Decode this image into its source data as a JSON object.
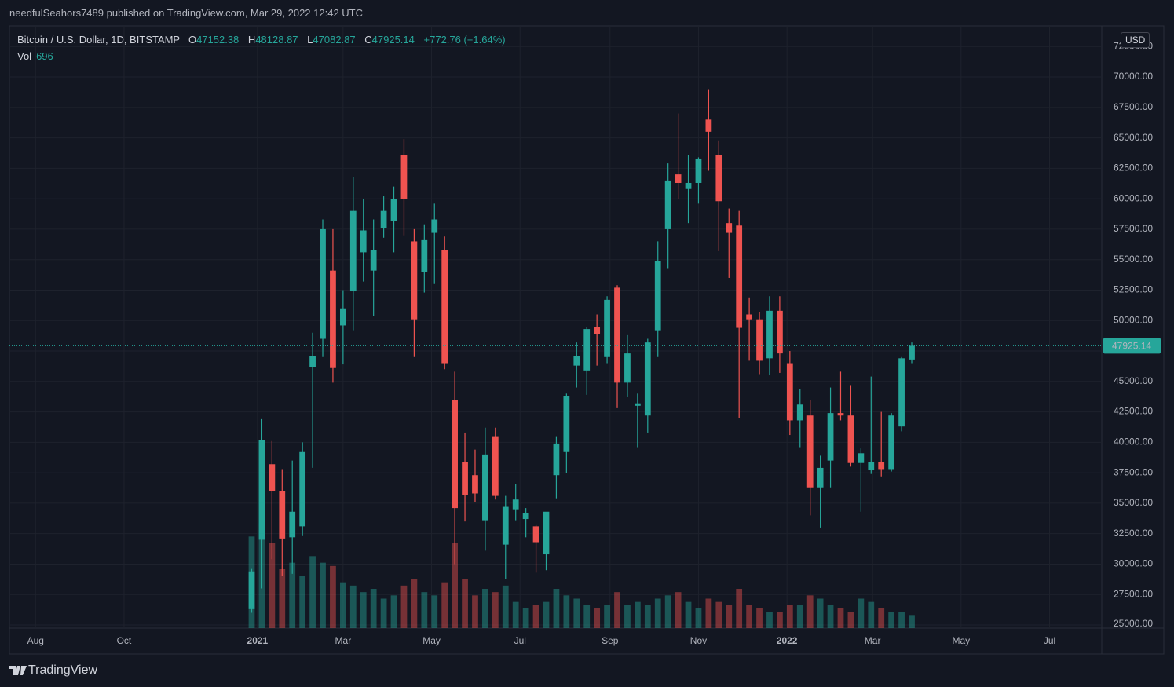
{
  "page": {
    "published": "needfulSeahors7489 published on TradingView.com, Mar 29, 2022 12:42 UTC",
    "brand": "TradingView"
  },
  "chart_data": {
    "type": "candlestick",
    "symbol": "Bitcoin / U.S. Dollar, 1D, BITSTAMP",
    "header": {
      "open_label": "O",
      "open": "47152.38",
      "high_label": "H",
      "high": "48128.87",
      "low_label": "L",
      "low": "47082.87",
      "close_label": "C",
      "close": "47925.14",
      "change": "+772.76 (+1.64%)",
      "vol_label": "Vol",
      "vol": "696"
    },
    "currency": "USD",
    "up_color": "#26a69a",
    "down_color": "#ef5350",
    "grid": true,
    "xlim": [
      -171,
      582
    ],
    "xticks": [
      {
        "value": -153,
        "label": "Aug"
      },
      {
        "value": -92,
        "label": "Oct"
      },
      {
        "value": 0,
        "label": "2021"
      },
      {
        "value": 59,
        "label": "Mar"
      },
      {
        "value": 120,
        "label": "May"
      },
      {
        "value": 181,
        "label": "Jul"
      },
      {
        "value": 243,
        "label": "Sep"
      },
      {
        "value": 304,
        "label": "Nov"
      },
      {
        "value": 365,
        "label": "2022"
      },
      {
        "value": 424,
        "label": "Mar"
      },
      {
        "value": 485,
        "label": "May"
      },
      {
        "value": 546,
        "label": "Jul"
      }
    ],
    "ylim": [
      24742,
      74194
    ],
    "yticks": [
      {
        "value": 25000,
        "label": "25000.00"
      },
      {
        "value": 27500,
        "label": "27500.00"
      },
      {
        "value": 30000,
        "label": "30000.00"
      },
      {
        "value": 32500,
        "label": "32500.00"
      },
      {
        "value": 35000,
        "label": "35000.00"
      },
      {
        "value": 37500,
        "label": "37500.00"
      },
      {
        "value": 40000,
        "label": "40000.00"
      },
      {
        "value": 42500,
        "label": "42500.00"
      },
      {
        "value": 45000,
        "label": "45000.00"
      },
      {
        "value": 47500,
        "label": "47500.00"
      },
      {
        "value": 50000,
        "label": "50000.00"
      },
      {
        "value": 52500,
        "label": "52500.00"
      },
      {
        "value": 55000,
        "label": "55000.00"
      },
      {
        "value": 57500,
        "label": "57500.00"
      },
      {
        "value": 60000,
        "label": "60000.00"
      },
      {
        "value": 62500,
        "label": "62500.00"
      },
      {
        "value": 65000,
        "label": "65000.00"
      },
      {
        "value": 67500,
        "label": "67500.00"
      },
      {
        "value": 70000,
        "label": "70000.00"
      },
      {
        "value": 72500,
        "label": "72500.00"
      }
    ],
    "last_price": 47925.14,
    "volume_lim": [
      0,
      60000
    ],
    "candles": {
      "x": [
        -4,
        3,
        10,
        17,
        24,
        31,
        38,
        45,
        52,
        59,
        66,
        73,
        80,
        87,
        94,
        101,
        108,
        115,
        122,
        129,
        136,
        143,
        150,
        157,
        164,
        171,
        178,
        185,
        192,
        199,
        206,
        213,
        220,
        227,
        234,
        241,
        248,
        255,
        262,
        269,
        276,
        283,
        290,
        297,
        304,
        311,
        318,
        325,
        332,
        339,
        346,
        353,
        360,
        367,
        374,
        381,
        388,
        395,
        402,
        409,
        416,
        423,
        430,
        437,
        444,
        451
      ],
      "open": [
        26300,
        32000,
        38200,
        36000,
        32200,
        33100,
        46200,
        48500,
        54100,
        49600,
        52400,
        55600,
        54100,
        57600,
        58200,
        63600,
        56500,
        54000,
        57200,
        55800,
        43500,
        38400,
        37300,
        33600,
        40500,
        31600,
        34500,
        33700,
        33100,
        30800,
        37300,
        39200,
        46300,
        45900,
        49500,
        47000,
        52700,
        44900,
        43000,
        42200,
        49200,
        57500,
        62000,
        60800,
        61300,
        66500,
        63600,
        58000,
        57800,
        50500,
        50100,
        46900,
        50800,
        46500,
        41800,
        42200,
        36300,
        38500,
        42400,
        42200,
        38300,
        37700,
        38400,
        37800,
        41300,
        46800
      ],
      "high": [
        29600,
        41900,
        40100,
        37800,
        38500,
        40000,
        49000,
        58300,
        57500,
        52500,
        61800,
        60000,
        58300,
        60200,
        61000,
        64900,
        57500,
        57900,
        59600,
        56900,
        45800,
        40800,
        39400,
        41200,
        41200,
        35600,
        36600,
        34600,
        33200,
        32300,
        40500,
        44000,
        48200,
        49500,
        50500,
        52000,
        52900,
        48800,
        44000,
        48500,
        56500,
        62900,
        67000,
        63600,
        63400,
        69000,
        64800,
        59200,
        59000,
        51900,
        50700,
        52000,
        52000,
        47500,
        44400,
        43500,
        38900,
        44500,
        45800,
        44700,
        39500,
        45400,
        42500,
        42400,
        47000,
        48200
      ],
      "low": [
        26000,
        28000,
        30400,
        29000,
        29200,
        32300,
        37900,
        47000,
        44900,
        46400,
        49200,
        53200,
        50400,
        56800,
        55600,
        57000,
        47000,
        52300,
        53000,
        46000,
        30000,
        33500,
        35100,
        31100,
        35300,
        28800,
        33600,
        32200,
        29300,
        29500,
        35400,
        37500,
        44500,
        43900,
        46300,
        46500,
        42800,
        43700,
        39600,
        40800,
        47000,
        54300,
        60000,
        58000,
        59600,
        62300,
        55700,
        53500,
        42000,
        46700,
        45600,
        45500,
        45700,
        40600,
        39600,
        34000,
        33000,
        36300,
        41800,
        38000,
        34300,
        37400,
        37200,
        37600,
        40900,
        46500
      ],
      "close": [
        29400,
        40200,
        36000,
        32100,
        34300,
        39200,
        47100,
        57500,
        46100,
        51000,
        59000,
        57400,
        55800,
        59000,
        60000,
        60000,
        50100,
        56600,
        58300,
        46500,
        34600,
        35700,
        35800,
        39000,
        35600,
        34700,
        35300,
        34200,
        31800,
        34300,
        39900,
        43800,
        47100,
        49300,
        48900,
        51700,
        44900,
        47300,
        43200,
        48200,
        54900,
        61500,
        61300,
        61300,
        63300,
        65500,
        59800,
        57200,
        49400,
        50100,
        46700,
        50800,
        47300,
        41800,
        43100,
        36300,
        37900,
        42400,
        42200,
        38300,
        39100,
        38400,
        37800,
        42200,
        46900,
        47925.14
      ],
      "volume": [
        28000,
        32000,
        26000,
        18000,
        20000,
        16000,
        22000,
        20000,
        19000,
        14000,
        13000,
        11000,
        12000,
        9000,
        10000,
        13000,
        15000,
        11000,
        10000,
        14000,
        26000,
        15000,
        10000,
        12000,
        11000,
        13000,
        8000,
        6000,
        7000,
        8000,
        12000,
        10000,
        9000,
        7000,
        6000,
        7000,
        11000,
        7000,
        8000,
        7000,
        9000,
        10000,
        11000,
        8000,
        6000,
        9000,
        8000,
        7000,
        12000,
        7000,
        6000,
        5000,
        5000,
        7000,
        7000,
        10000,
        9000,
        7000,
        6000,
        5000,
        9000,
        8000,
        6000,
        5000,
        5000,
        4000
      ]
    }
  }
}
